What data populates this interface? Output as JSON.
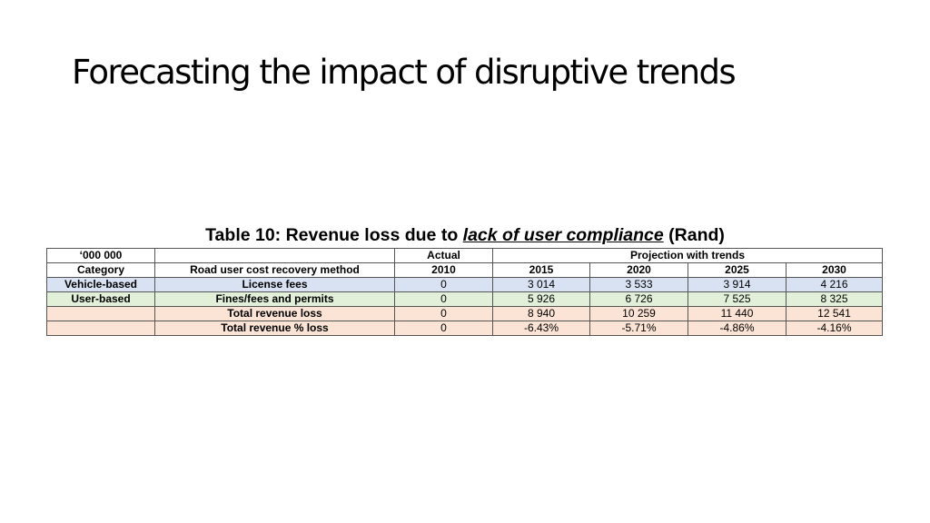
{
  "slide": {
    "title": "Forecasting the impact of disruptive trends"
  },
  "caption": {
    "prefix": "Table 10: Revenue loss due to ",
    "emphasis": "lack of user compliance",
    "suffix": " (Rand)"
  },
  "table": {
    "header1": {
      "unit": "‘000 000",
      "blank": "",
      "actual": "Actual",
      "projection": "Projection with trends"
    },
    "header2": [
      "Category",
      "Road user cost recovery method",
      "2010",
      "2015",
      "2020",
      "2025",
      "2030"
    ],
    "rows": [
      {
        "category": "Vehicle-based",
        "method": "License fees",
        "values": [
          "0",
          "3 014",
          "3 533",
          "3 914",
          "4 216"
        ]
      },
      {
        "category": "User-based",
        "method": "Fines/fees and permits",
        "values": [
          "0",
          "5 926",
          "6 726",
          "7 525",
          "8 325"
        ]
      },
      {
        "category": "",
        "method": "Total revenue loss",
        "values": [
          "0",
          "8 940",
          "10 259",
          "11 440",
          "12 541"
        ]
      },
      {
        "category": "",
        "method": "Total revenue % loss",
        "values": [
          "0",
          "-6.43%",
          "-5.71%",
          "-4.86%",
          "-4.16%"
        ]
      }
    ],
    "row_colors": [
      "#d9e2f3",
      "#e2efd9",
      "#fbe4d5",
      "#fbe4d5"
    ]
  }
}
